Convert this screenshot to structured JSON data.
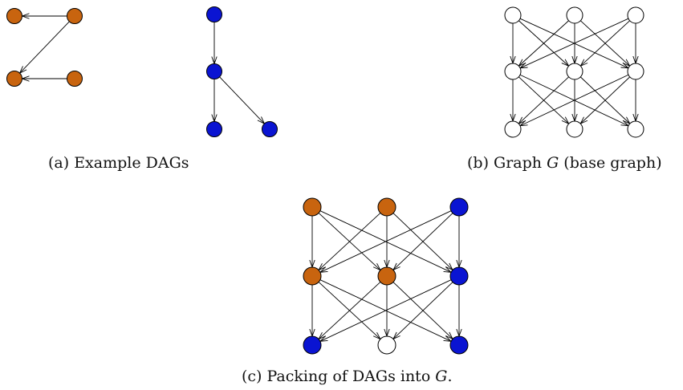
{
  "colors": {
    "orange": "#c8640f",
    "blue": "#0a14d2",
    "white": "#ffffff",
    "stroke": "#000000"
  },
  "captions": {
    "a": "(a)  Example DAGs",
    "b_prefix": "(b)  Graph ",
    "b_var": "G",
    "b_suffix": " (base graph)",
    "c_prefix": "(c)  Packing of DAGs into ",
    "c_var": "G",
    "c_suffix": "."
  },
  "diagrams": {
    "dag_orange": {
      "nodes": [
        "o1",
        "o2",
        "o3",
        "o4"
      ],
      "node_color": "orange",
      "edges": [
        [
          "o2",
          "o1"
        ],
        [
          "o2",
          "o3"
        ],
        [
          "o4",
          "o3"
        ]
      ]
    },
    "dag_blue": {
      "nodes": [
        "b1",
        "b2",
        "b3",
        "b4"
      ],
      "node_color": "blue",
      "edges": [
        [
          "b1",
          "b2"
        ],
        [
          "b2",
          "b3"
        ],
        [
          "b2",
          "b4"
        ]
      ]
    },
    "base_graph": {
      "rows": 3,
      "cols": 3,
      "node_colors": [
        [
          "white",
          "white",
          "white"
        ],
        [
          "white",
          "white",
          "white"
        ],
        [
          "white",
          "white",
          "white"
        ]
      ]
    },
    "packing": {
      "rows": 3,
      "cols": 3,
      "node_colors": [
        [
          "orange",
          "orange",
          "blue"
        ],
        [
          "orange",
          "orange",
          "blue"
        ],
        [
          "blue",
          "white",
          "blue"
        ]
      ]
    }
  }
}
